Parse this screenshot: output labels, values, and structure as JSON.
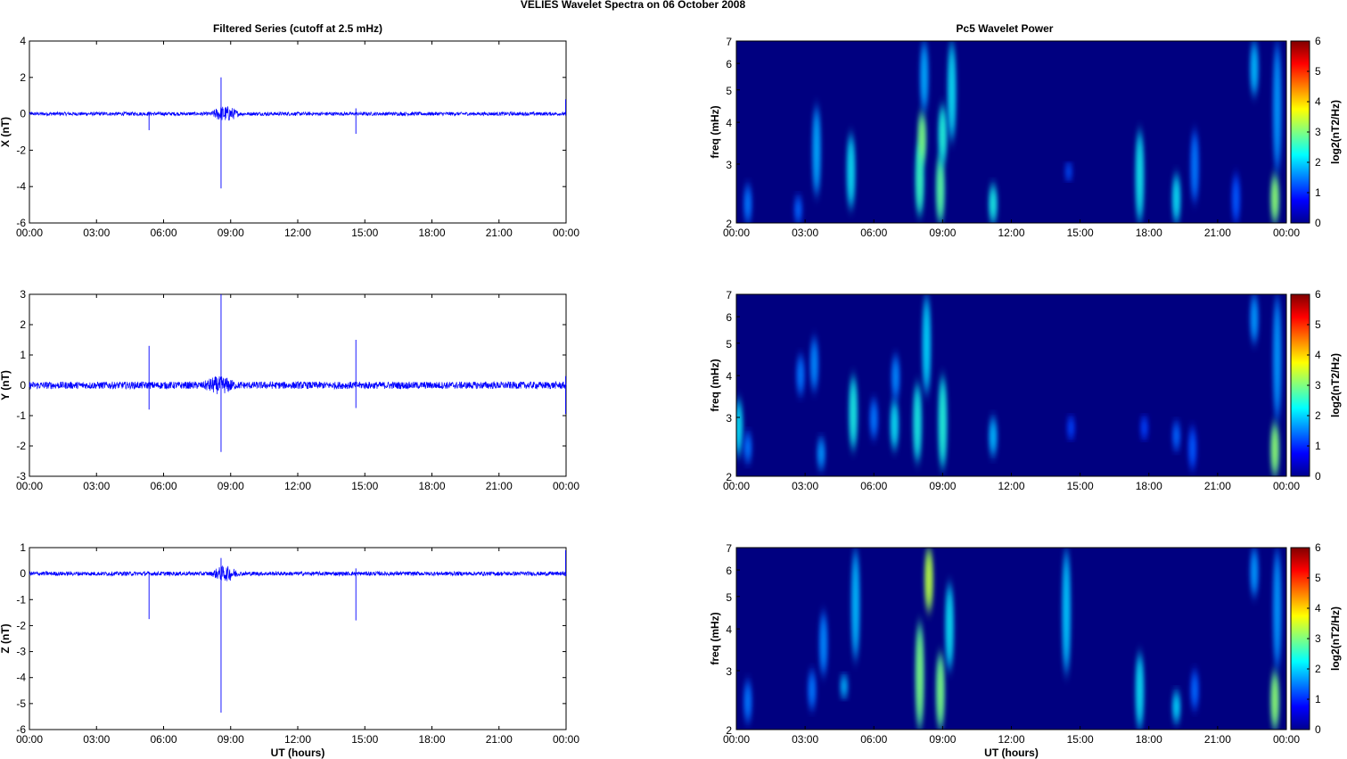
{
  "figure_title": "VELIES Wavelet Spectra on 06 October   2008",
  "left_title": "Filtered Series (cutoff at 2.5 mHz)",
  "right_title": "Pc5 Wavelet Power",
  "xlabel": "UT (hours)",
  "freq_label": "freq (mHz)",
  "colorbar_label": "log2(nT2/Hz)",
  "x_ticks": [
    "00:00",
    "03:00",
    "06:00",
    "09:00",
    "12:00",
    "15:00",
    "18:00",
    "21:00",
    "00:00"
  ],
  "freq_ticks": [
    "2",
    "3",
    "4",
    "5",
    "6",
    "7"
  ],
  "colorbar_ticks": [
    "0",
    "1",
    "2",
    "3",
    "4",
    "5",
    "6"
  ],
  "colors": {
    "series_line": "#0000ff",
    "background": "#000080"
  },
  "chart_data": [
    {
      "type": "line",
      "title": "Filtered Series (cutoff at 2.5 mHz)",
      "ylabel": "X (nT)",
      "xlabel": "",
      "xlim_hours": [
        0,
        24
      ],
      "ylim": [
        -6,
        4
      ],
      "y_ticks": [
        "4",
        "2",
        "0",
        "-2",
        "-4",
        "-6"
      ],
      "noise_amplitude": 0.1,
      "spikes": [
        {
          "t": 5.35,
          "min": -0.9,
          "max": 0.1
        },
        {
          "t": 8.57,
          "min": -4.1,
          "max": 2.0
        },
        {
          "t": 14.6,
          "min": -1.1,
          "max": 0.3
        },
        {
          "t": 23.98,
          "min": -0.1,
          "max": 0.8
        }
      ],
      "active_bursts": [
        {
          "start": 8.0,
          "end": 9.5,
          "amplitude": 0.45
        }
      ]
    },
    {
      "type": "line",
      "ylabel": "Y (nT)",
      "xlabel": "",
      "xlim_hours": [
        0,
        24
      ],
      "ylim": [
        -3,
        3
      ],
      "y_ticks": [
        "3",
        "2",
        "1",
        "0",
        "-1",
        "-2",
        "-3"
      ],
      "noise_amplitude": 0.12,
      "spikes": [
        {
          "t": 5.35,
          "min": -0.8,
          "max": 1.3
        },
        {
          "t": 8.57,
          "min": -2.2,
          "max": 3.0
        },
        {
          "t": 14.6,
          "min": -0.75,
          "max": 1.5
        },
        {
          "t": 23.98,
          "min": -0.95,
          "max": 0.3
        }
      ],
      "active_bursts": [
        {
          "start": 7.5,
          "end": 9.5,
          "amplitude": 0.3
        }
      ]
    },
    {
      "type": "line",
      "ylabel": "Z (nT)",
      "xlabel": "UT (hours)",
      "xlim_hours": [
        0,
        24
      ],
      "ylim": [
        -6,
        1
      ],
      "y_ticks": [
        "1",
        "0",
        "-1",
        "-2",
        "-3",
        "-4",
        "-5",
        "-6"
      ],
      "noise_amplitude": 0.08,
      "spikes": [
        {
          "t": 5.35,
          "min": -1.75,
          "max": 0.05
        },
        {
          "t": 8.57,
          "min": -5.35,
          "max": 0.6
        },
        {
          "t": 14.6,
          "min": -1.8,
          "max": 0.2
        },
        {
          "t": 23.98,
          "min": -0.1,
          "max": 0.9
        }
      ],
      "active_bursts": [
        {
          "start": 8.0,
          "end": 9.5,
          "amplitude": 0.3
        }
      ]
    },
    {
      "type": "heatmap",
      "title": "Pc5 Wavelet Power",
      "ylabel": "freq (mHz)",
      "xlabel": "",
      "xlim_hours": [
        0,
        24
      ],
      "ylim_mHz": [
        2,
        7
      ],
      "y_scale": "log",
      "colorbar_range": [
        0,
        6
      ],
      "blobs": [
        {
          "t": 0.5,
          "f1": 2.0,
          "f2": 2.6,
          "level": 0.6
        },
        {
          "t": 2.7,
          "f1": 2.0,
          "f2": 2.4,
          "level": 0.5
        },
        {
          "t": 3.5,
          "f1": 2.4,
          "f2": 4.5,
          "level": 0.9
        },
        {
          "t": 5.0,
          "f1": 2.2,
          "f2": 3.7,
          "level": 1.3
        },
        {
          "t": 8.0,
          "f1": 2.1,
          "f2": 3.5,
          "level": 1.8
        },
        {
          "t": 8.1,
          "f1": 3.0,
          "f2": 4.3,
          "level": 2.2
        },
        {
          "t": 8.2,
          "f1": 4.3,
          "f2": 7.0,
          "level": 0.9
        },
        {
          "t": 8.9,
          "f1": 2.0,
          "f2": 3.2,
          "level": 2.0
        },
        {
          "t": 9.0,
          "f1": 3.0,
          "f2": 4.5,
          "level": 1.6
        },
        {
          "t": 9.4,
          "f1": 3.5,
          "f2": 7.0,
          "level": 1.3
        },
        {
          "t": 11.2,
          "f1": 2.0,
          "f2": 2.6,
          "level": 1.5
        },
        {
          "t": 14.5,
          "f1": 2.7,
          "f2": 3.0,
          "level": 0.4
        },
        {
          "t": 17.6,
          "f1": 2.0,
          "f2": 3.8,
          "level": 1.4
        },
        {
          "t": 19.2,
          "f1": 2.0,
          "f2": 2.8,
          "level": 1.3
        },
        {
          "t": 20.0,
          "f1": 2.3,
          "f2": 3.8,
          "level": 0.6
        },
        {
          "t": 21.8,
          "f1": 2.0,
          "f2": 2.8,
          "level": 0.4
        },
        {
          "t": 22.6,
          "f1": 4.8,
          "f2": 7.0,
          "level": 1.0
        },
        {
          "t": 23.5,
          "f1": 2.0,
          "f2": 2.8,
          "level": 2.3
        },
        {
          "t": 23.6,
          "f1": 2.8,
          "f2": 7.0,
          "level": 0.8
        }
      ]
    },
    {
      "type": "heatmap",
      "ylabel": "freq (mHz)",
      "xlabel": "",
      "xlim_hours": [
        0,
        24
      ],
      "ylim_mHz": [
        2,
        7
      ],
      "y_scale": "log",
      "colorbar_range": [
        0,
        6
      ],
      "blobs": [
        {
          "t": 0.1,
          "f1": 2.3,
          "f2": 3.4,
          "level": 1.3
        },
        {
          "t": 0.5,
          "f1": 2.2,
          "f2": 2.7,
          "level": 0.6
        },
        {
          "t": 2.8,
          "f1": 3.5,
          "f2": 4.6,
          "level": 0.6
        },
        {
          "t": 3.4,
          "f1": 3.6,
          "f2": 5.2,
          "level": 0.7
        },
        {
          "t": 3.7,
          "f1": 2.1,
          "f2": 2.6,
          "level": 0.8
        },
        {
          "t": 5.1,
          "f1": 2.4,
          "f2": 4.0,
          "level": 1.5
        },
        {
          "t": 6.0,
          "f1": 2.6,
          "f2": 3.4,
          "level": 0.6
        },
        {
          "t": 6.9,
          "f1": 2.4,
          "f2": 3.4,
          "level": 1.3
        },
        {
          "t": 6.95,
          "f1": 3.4,
          "f2": 4.6,
          "level": 0.7
        },
        {
          "t": 7.9,
          "f1": 2.2,
          "f2": 3.8,
          "level": 1.5
        },
        {
          "t": 8.3,
          "f1": 3.5,
          "f2": 7.0,
          "level": 1.2
        },
        {
          "t": 9.0,
          "f1": 2.1,
          "f2": 4.0,
          "level": 1.6
        },
        {
          "t": 11.2,
          "f1": 2.3,
          "f2": 3.0,
          "level": 1.0
        },
        {
          "t": 14.6,
          "f1": 2.6,
          "f2": 3.0,
          "level": 0.3
        },
        {
          "t": 17.8,
          "f1": 2.6,
          "f2": 3.0,
          "level": 0.3
        },
        {
          "t": 19.2,
          "f1": 2.4,
          "f2": 2.9,
          "level": 0.5
        },
        {
          "t": 19.9,
          "f1": 2.1,
          "f2": 2.8,
          "level": 0.4
        },
        {
          "t": 22.6,
          "f1": 5.0,
          "f2": 7.0,
          "level": 0.8
        },
        {
          "t": 23.5,
          "f1": 2.0,
          "f2": 2.9,
          "level": 2.3
        },
        {
          "t": 23.6,
          "f1": 2.9,
          "f2": 7.0,
          "level": 0.8
        }
      ]
    },
    {
      "type": "heatmap",
      "ylabel": "freq (mHz)",
      "xlabel": "UT (hours)",
      "xlim_hours": [
        0,
        24
      ],
      "ylim_mHz": [
        2,
        7
      ],
      "y_scale": "log",
      "colorbar_range": [
        0,
        6
      ],
      "blobs": [
        {
          "t": 0.5,
          "f1": 2.1,
          "f2": 2.8,
          "level": 0.6
        },
        {
          "t": 3.3,
          "f1": 2.3,
          "f2": 3.0,
          "level": 0.6
        },
        {
          "t": 3.8,
          "f1": 2.9,
          "f2": 4.5,
          "level": 0.7
        },
        {
          "t": 4.7,
          "f1": 2.5,
          "f2": 2.9,
          "level": 1.0
        },
        {
          "t": 5.2,
          "f1": 3.2,
          "f2": 7.0,
          "level": 1.0
        },
        {
          "t": 8.0,
          "f1": 2.0,
          "f2": 4.2,
          "level": 2.2
        },
        {
          "t": 8.4,
          "f1": 4.5,
          "f2": 7.0,
          "level": 2.6
        },
        {
          "t": 8.9,
          "f1": 2.0,
          "f2": 3.4,
          "level": 2.2
        },
        {
          "t": 9.3,
          "f1": 3.0,
          "f2": 5.5,
          "level": 1.3
        },
        {
          "t": 14.4,
          "f1": 2.9,
          "f2": 7.0,
          "level": 1.1
        },
        {
          "t": 17.6,
          "f1": 2.0,
          "f2": 3.4,
          "level": 1.3
        },
        {
          "t": 19.2,
          "f1": 2.1,
          "f2": 2.6,
          "level": 1.2
        },
        {
          "t": 20.0,
          "f1": 2.3,
          "f2": 3.0,
          "level": 0.5
        },
        {
          "t": 22.6,
          "f1": 5.0,
          "f2": 7.0,
          "level": 0.8
        },
        {
          "t": 23.5,
          "f1": 2.0,
          "f2": 3.0,
          "level": 2.3
        },
        {
          "t": 23.6,
          "f1": 3.0,
          "f2": 7.0,
          "level": 0.8
        }
      ]
    }
  ]
}
